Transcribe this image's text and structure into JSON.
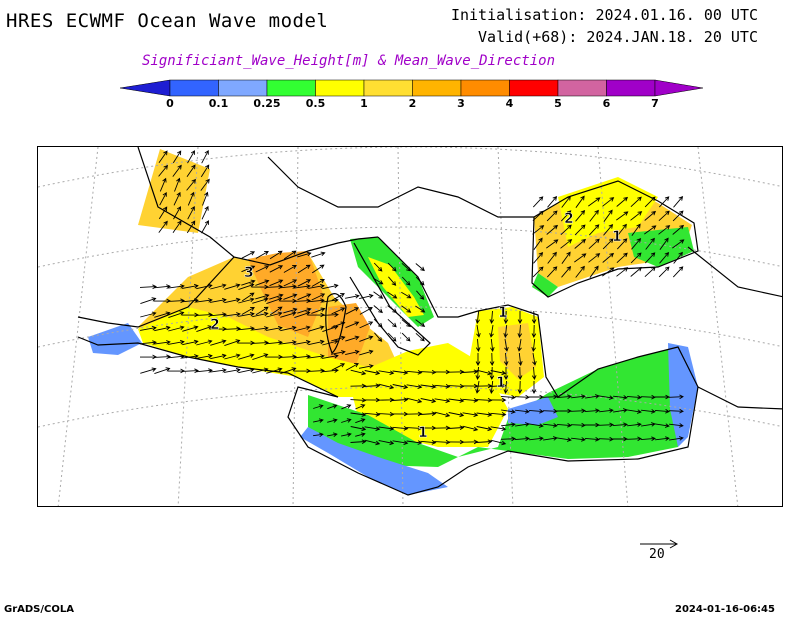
{
  "header": {
    "model_title": "HRES ECWMF Ocean Wave model",
    "initialisation": "Initialisation: 2024.01.16. 00 UTC",
    "valid": "Valid(+68): 2024.JAN.18. 20 UTC",
    "subtitle": "Significiant_Wave_Height[m] & Mean_Wave_Direction"
  },
  "legend": {
    "units": "m",
    "bins": [
      {
        "label": "0",
        "color": "#0000ff"
      },
      {
        "label": "0.1",
        "color": "#3264ff"
      },
      {
        "label": "0.25",
        "color": "#7fa8ff"
      },
      {
        "label": "0.5",
        "color": "#32ff32"
      },
      {
        "label": "1",
        "color": "#ffff00"
      },
      {
        "label": "2",
        "color": "#ffdf32"
      },
      {
        "label": "3",
        "color": "#ffb400"
      },
      {
        "label": "4",
        "color": "#ff8c00"
      },
      {
        "label": "5",
        "color": "#ff0000"
      },
      {
        "label": "6",
        "color": "#d264a0"
      },
      {
        "label": "7",
        "color": "#a000c8"
      }
    ],
    "low_color": "#1e1ed2",
    "high_color": "#a000c8"
  },
  "map": {
    "region": "Mediterranean and Black Sea",
    "contour_labels": [
      "3",
      "2",
      "1",
      "1",
      "1",
      "2",
      "1"
    ],
    "colors": {
      "land_border": "#000000",
      "graticule": "#aaaaaa",
      "green": "#32e632",
      "yellow": "#ffff00",
      "gold": "#ffd232",
      "orange": "#ffaa28",
      "lightblue": "#6496ff",
      "arrow": "#000000"
    }
  },
  "reference_vector": {
    "label": "20"
  },
  "footer": {
    "left": "GrADS/COLA",
    "right": "2024-01-16-06:45"
  }
}
